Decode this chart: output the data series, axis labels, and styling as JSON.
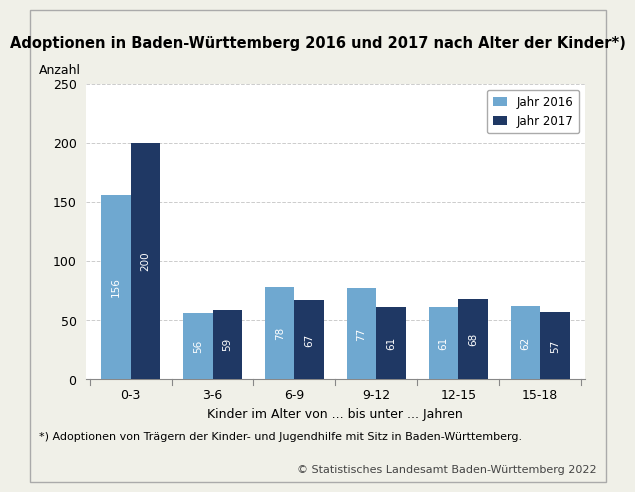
{
  "title": "Adoptionen in Baden-Württemberg 2016 und 2017 nach Alter der Kinder*)",
  "ylabel": "Anzahl",
  "xlabel": "Kinder im Alter von ... bis unter ... Jahren",
  "categories": [
    "0-3",
    "3-6",
    "6-9",
    "9-12",
    "12-15",
    "15-18"
  ],
  "values_2016": [
    156,
    56,
    78,
    77,
    61,
    62
  ],
  "values_2017": [
    200,
    59,
    67,
    61,
    68,
    57
  ],
  "color_2016": "#6fa8d0",
  "color_2017": "#1f3864",
  "legend_2016": "Jahr 2016",
  "legend_2017": "Jahr 2017",
  "ylim": [
    0,
    250
  ],
  "yticks": [
    0,
    50,
    100,
    150,
    200,
    250
  ],
  "footnote1": "*) Adoptionen von Trägern der Kinder- und Jugendhilfe mit Sitz in Baden-Württemberg.",
  "footnote2": "© Statistisches Landesamt Baden-Württemberg 2022",
  "background_color": "#f0f0e8",
  "plot_background": "#ffffff",
  "bar_width": 0.36,
  "title_fontsize": 10.5,
  "label_fontsize": 9,
  "tick_fontsize": 9,
  "footnote1_fontsize": 8,
  "footnote2_fontsize": 8,
  "bar_label_fontsize": 7.5,
  "grid_color": "#cccccc"
}
